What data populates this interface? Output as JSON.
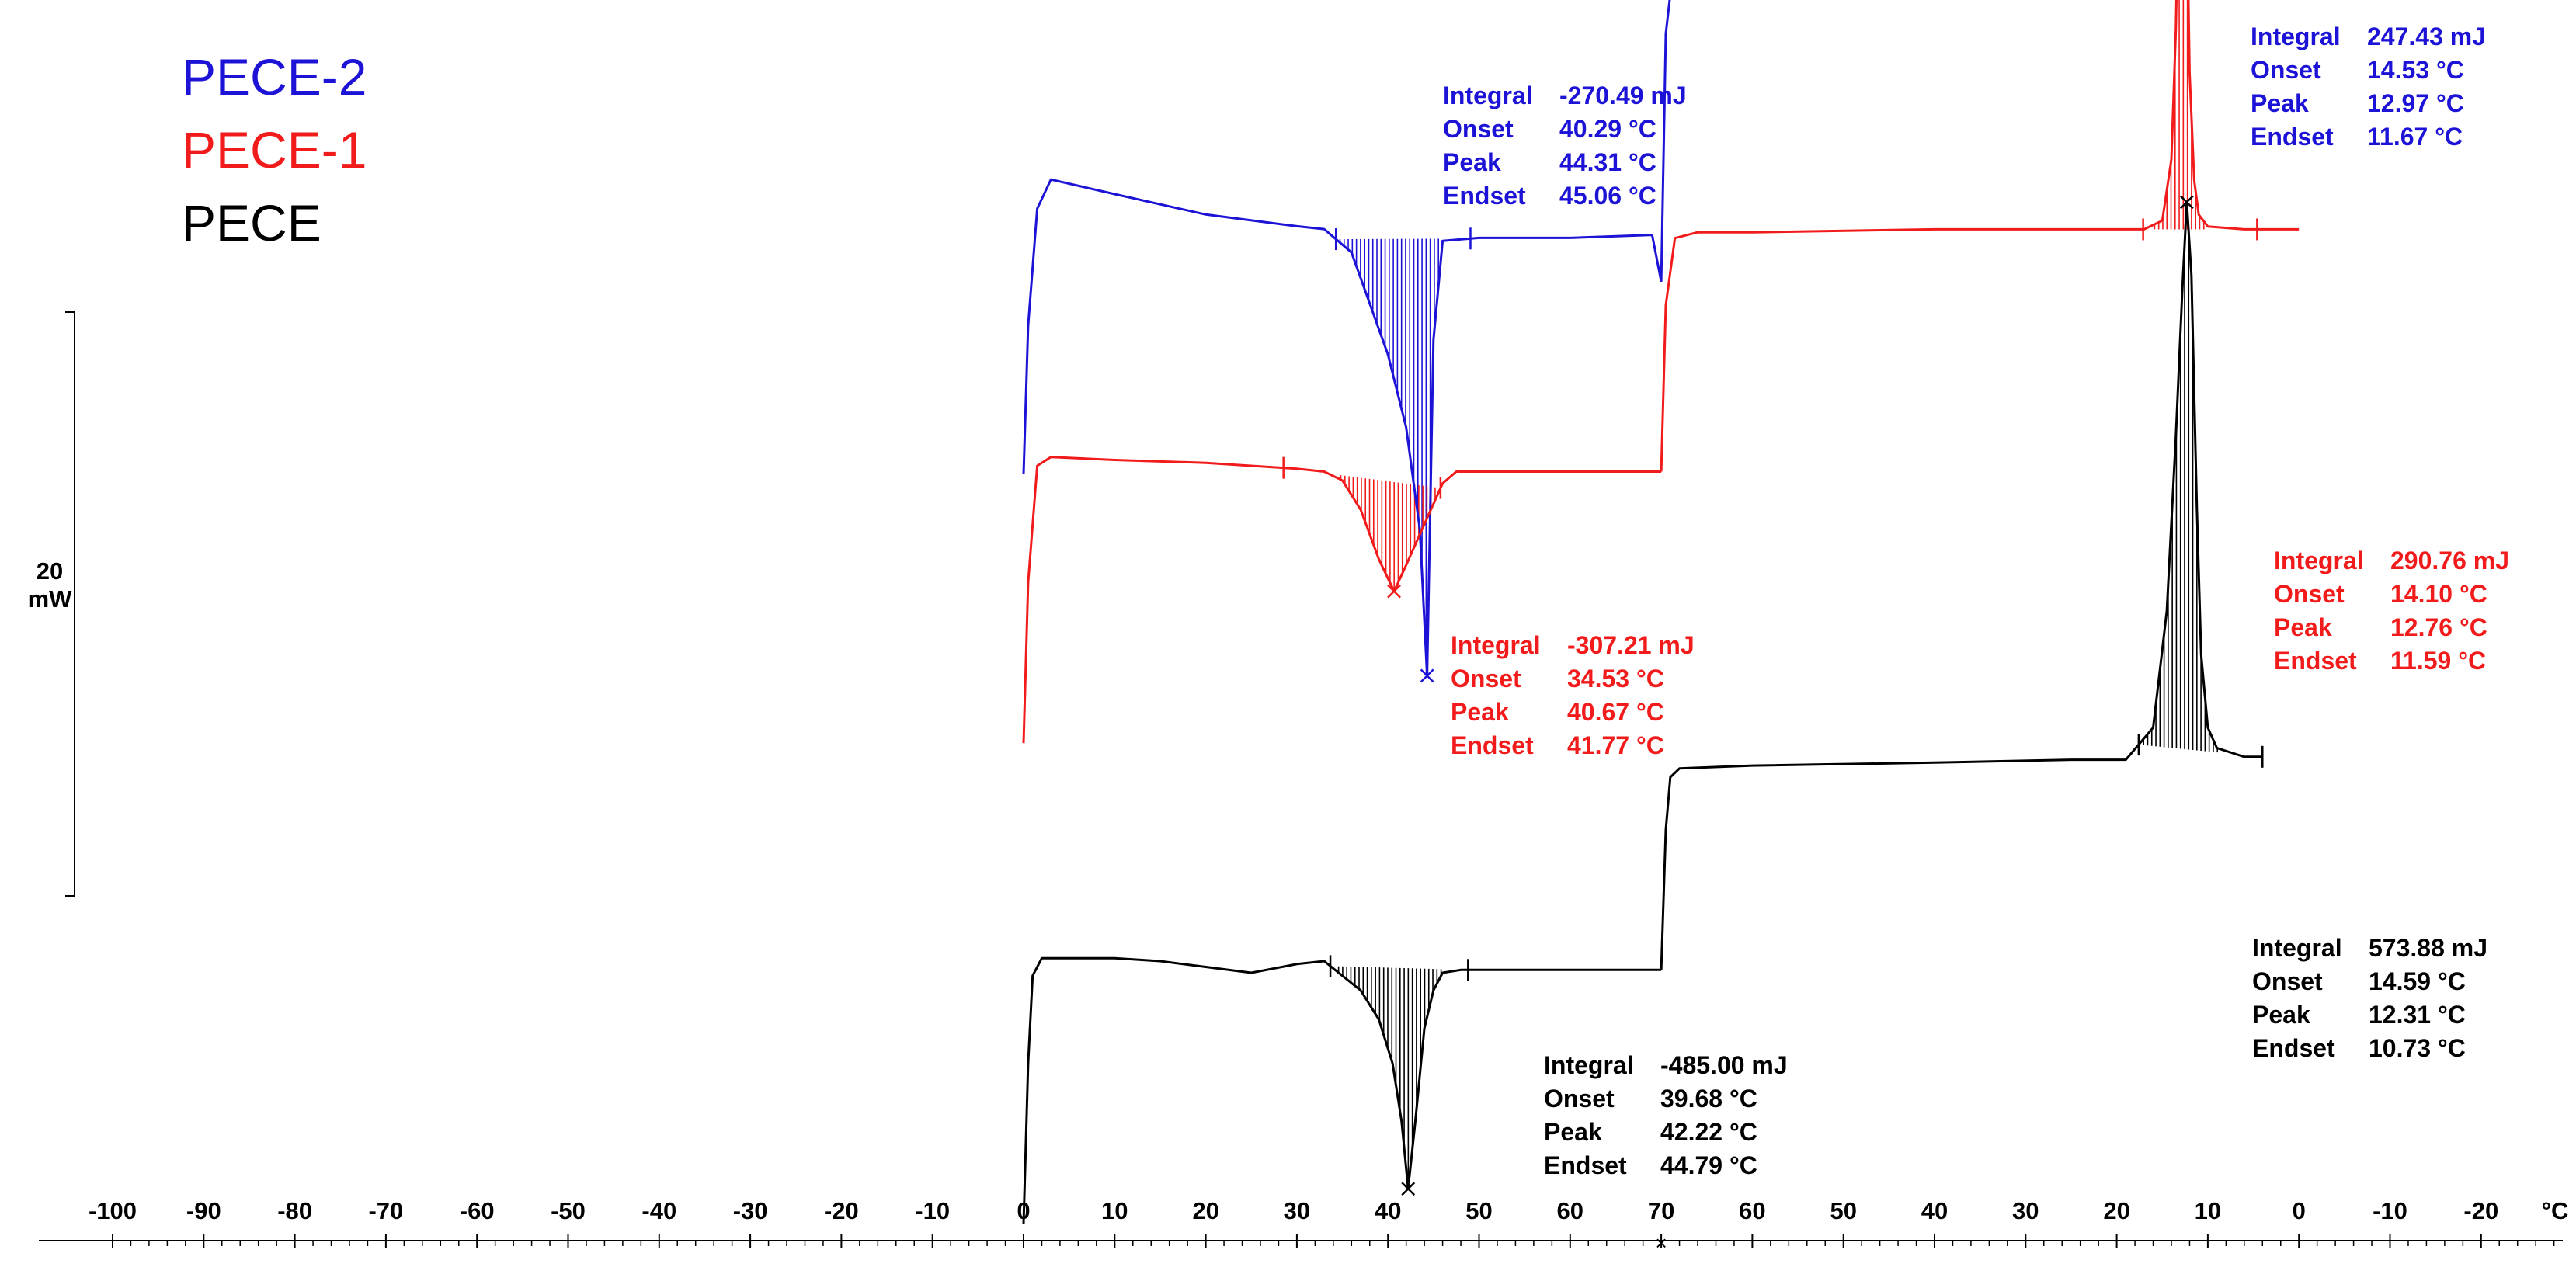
{
  "colors": {
    "PECE-2": "#1c13d6",
    "PECE-1": "#f21b1b",
    "PECE": "#000000"
  },
  "chart_data": {
    "type": "line",
    "title": "",
    "xlabel": "°C",
    "ylabel": "",
    "temperature_program": "heating 0 → 70 °C, then cooling 70 → -20 °C",
    "x_tick_labels": [
      "-100",
      "-90",
      "-80",
      "-70",
      "-60",
      "-50",
      "-40",
      "-30",
      "-20",
      "-10",
      "0",
      "10",
      "20",
      "30",
      "40",
      "50",
      "60",
      "70",
      "60",
      "50",
      "40",
      "30",
      "20",
      "10",
      "0",
      "-10",
      "-20"
    ],
    "scale_bar": {
      "value": "20",
      "unit": "mW"
    },
    "legend": [
      {
        "name": "PECE-2",
        "color": "#1c13d6"
      },
      {
        "name": "PECE-1",
        "color": "#f21b1b"
      },
      {
        "name": "PECE",
        "color": "#000000"
      }
    ],
    "series": [
      {
        "name": "PECE-2",
        "heating": {
          "x": [
            0,
            0.5,
            1.5,
            3,
            10,
            20,
            30,
            33,
            36,
            40,
            42,
            43.5,
            44.3,
            45,
            46,
            50,
            60,
            69,
            70
          ],
          "y": [
            -4.6,
            0.5,
            4.5,
            5.5,
            5.0,
            4.3,
            3.9,
            3.8,
            3.0,
            -0.5,
            -3.0,
            -6.5,
            -11.5,
            0.0,
            3.4,
            3.5,
            3.5,
            3.6,
            2.0
          ]
        },
        "cooling": {
          "x": [
            70,
            69.5,
            68.5,
            66,
            60,
            40,
            25,
            17,
            15.5,
            14.5,
            13.8,
            13.3,
            12.97,
            12.6,
            12,
            11.5,
            11,
            10,
            6,
            0
          ],
          "y": [
            2.0,
            10.5,
            13.2,
            13.5,
            13.6,
            14.0,
            14.2,
            14.3,
            14.6,
            16.5,
            20.5,
            26.0,
            29.5,
            27.0,
            19.5,
            16.0,
            15.0,
            14.4,
            14.3,
            14.3
          ]
        }
      },
      {
        "name": "PECE-1",
        "heating": {
          "x": [
            0,
            0.5,
            1.5,
            3,
            10,
            20,
            30,
            33,
            35,
            37,
            39,
            40.67,
            42,
            44,
            46,
            47.5,
            50,
            60,
            69,
            70
          ],
          "y": [
            -4.5,
            1.0,
            5.0,
            5.3,
            5.2,
            5.1,
            4.9,
            4.8,
            4.5,
            3.5,
            1.8,
            0.7,
            1.6,
            3.0,
            4.4,
            4.8,
            4.8,
            4.8,
            4.8,
            4.8
          ]
        },
        "cooling": {
          "x": [
            70,
            69.5,
            68.5,
            66,
            60,
            40,
            25,
            17,
            15,
            14,
            13.5,
            13.1,
            12.76,
            12.4,
            12,
            11.5,
            11,
            10,
            6,
            0
          ],
          "y": [
            4.8,
            10.5,
            12.8,
            13.0,
            13.0,
            13.1,
            13.1,
            13.1,
            13.4,
            15.5,
            20.0,
            27.0,
            32.0,
            26.5,
            18.5,
            14.8,
            13.6,
            13.2,
            13.1,
            13.1
          ]
        }
      },
      {
        "name": "PECE",
        "heating": {
          "x": [
            0,
            0.5,
            1,
            2,
            4,
            10,
            15,
            20,
            25,
            30,
            33,
            35,
            37,
            39,
            40.5,
            41.5,
            42.22,
            43,
            44,
            45,
            46,
            48,
            55,
            65,
            69,
            70
          ],
          "y": [
            -6.5,
            -1.0,
            2.0,
            2.6,
            2.6,
            2.6,
            2.5,
            2.3,
            2.1,
            2.4,
            2.5,
            2.0,
            1.5,
            0.5,
            -1.0,
            -3.0,
            -5.3,
            -3.0,
            0.2,
            1.5,
            2.1,
            2.2,
            2.2,
            2.2,
            2.2,
            2.2
          ]
        },
        "cooling": {
          "x": [
            70,
            69.5,
            69,
            68,
            60,
            40,
            25,
            19,
            16,
            14.5,
            13.5,
            12.8,
            12.31,
            11.8,
            11.2,
            10.73,
            10,
            9,
            6,
            4
          ],
          "y": [
            2.2,
            7.0,
            8.8,
            9.1,
            9.2,
            9.3,
            9.4,
            9.4,
            10.5,
            14.5,
            20.5,
            25.5,
            28.5,
            26.0,
            18.0,
            13.0,
            10.5,
            9.8,
            9.5,
            9.5
          ]
        }
      }
    ],
    "annotations": [
      {
        "series": "PECE-2",
        "segment": "heating",
        "labels": [
          "Integral",
          "Onset",
          "Peak",
          "Endset"
        ],
        "values": [
          "-270.49 mJ",
          "40.29 °C",
          "44.31 °C",
          "45.06 °C"
        ],
        "peak_x": 44.3
      },
      {
        "series": "PECE-2",
        "segment": "cooling",
        "labels": [
          "Integral",
          "Onset",
          "Peak",
          "Endset"
        ],
        "values": [
          "247.43 mJ",
          "14.53 °C",
          "12.97 °C",
          "11.67 °C"
        ],
        "peak_x": 12.97
      },
      {
        "series": "PECE-1",
        "segment": "heating",
        "labels": [
          "Integral",
          "Onset",
          "Peak",
          "Endset"
        ],
        "values": [
          "-307.21 mJ",
          "34.53 °C",
          "40.67 °C",
          "41.77 °C"
        ],
        "peak_x": 40.67
      },
      {
        "series": "PECE-1",
        "segment": "cooling",
        "labels": [
          "Integral",
          "Onset",
          "Peak",
          "Endset"
        ],
        "values": [
          "290.76 mJ",
          "14.10 °C",
          "12.76 °C",
          "11.59 °C"
        ],
        "peak_x": 12.76
      },
      {
        "series": "PECE",
        "segment": "heating",
        "labels": [
          "Integral",
          "Onset",
          "Peak",
          "Endset"
        ],
        "values": [
          "-485.00 mJ",
          "39.68 °C",
          "42.22 °C",
          "44.79 °C"
        ],
        "peak_x": 42.22
      },
      {
        "series": "PECE",
        "segment": "cooling",
        "labels": [
          "Integral",
          "Onset",
          "Peak",
          "Endset"
        ],
        "values": [
          "573.88 mJ",
          "14.59 °C",
          "12.31 °C",
          "10.73 °C"
        ],
        "peak_x": 12.31
      }
    ]
  }
}
